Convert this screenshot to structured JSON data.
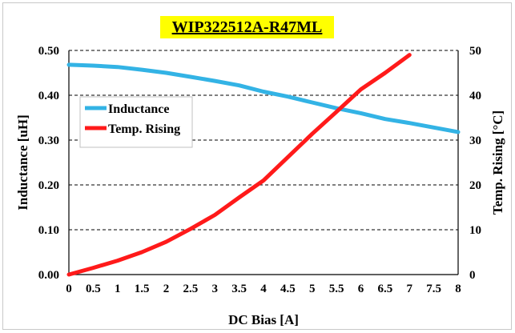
{
  "chart_data": {
    "type": "line",
    "title": "WIP322512A-R47ML",
    "xlabel": "DC Bias [A]",
    "ylabel_left": "Inductance  [uH]",
    "ylabel_right": "Temp.  Rising [°C]",
    "xlim": [
      0,
      8
    ],
    "ylim_left": [
      0,
      0.5
    ],
    "ylim_right": [
      0,
      50
    ],
    "x_ticks": [
      "0",
      "0.5",
      "1",
      "1.5",
      "2",
      "2.5",
      "3",
      "3.5",
      "4",
      "4.5",
      "5",
      "5.5",
      "6",
      "6.5",
      "7",
      "7.5",
      "8"
    ],
    "y_ticks_left": [
      "0.00",
      "0.10",
      "0.20",
      "0.30",
      "0.40",
      "0.50"
    ],
    "y_ticks_right": [
      "0",
      "10",
      "20",
      "30",
      "40",
      "50"
    ],
    "grid": "horizontal dashed",
    "legend_position": "upper-left",
    "series": [
      {
        "name": "Inductance",
        "axis": "left",
        "color": "#33b3e5",
        "x": [
          0,
          0.5,
          1,
          1.5,
          2,
          2.5,
          3,
          3.5,
          4,
          4.5,
          5,
          5.5,
          6,
          6.5,
          7,
          7.5,
          8
        ],
        "y": [
          0.468,
          0.466,
          0.463,
          0.457,
          0.45,
          0.441,
          0.432,
          0.422,
          0.408,
          0.397,
          0.384,
          0.371,
          0.36,
          0.347,
          0.338,
          0.328,
          0.318
        ]
      },
      {
        "name": "Temp. Rising",
        "axis": "right",
        "color": "#ff1a1a",
        "x": [
          0,
          0.5,
          1,
          1.5,
          2,
          2.5,
          3,
          3.5,
          4,
          4.5,
          5,
          5.5,
          6,
          6.5,
          7
        ],
        "y": [
          0,
          1.5,
          3.1,
          5.0,
          7.3,
          10.2,
          13.3,
          17.2,
          21.0,
          26.2,
          31.4,
          36.3,
          41.3,
          45.0,
          49.0
        ]
      }
    ]
  }
}
